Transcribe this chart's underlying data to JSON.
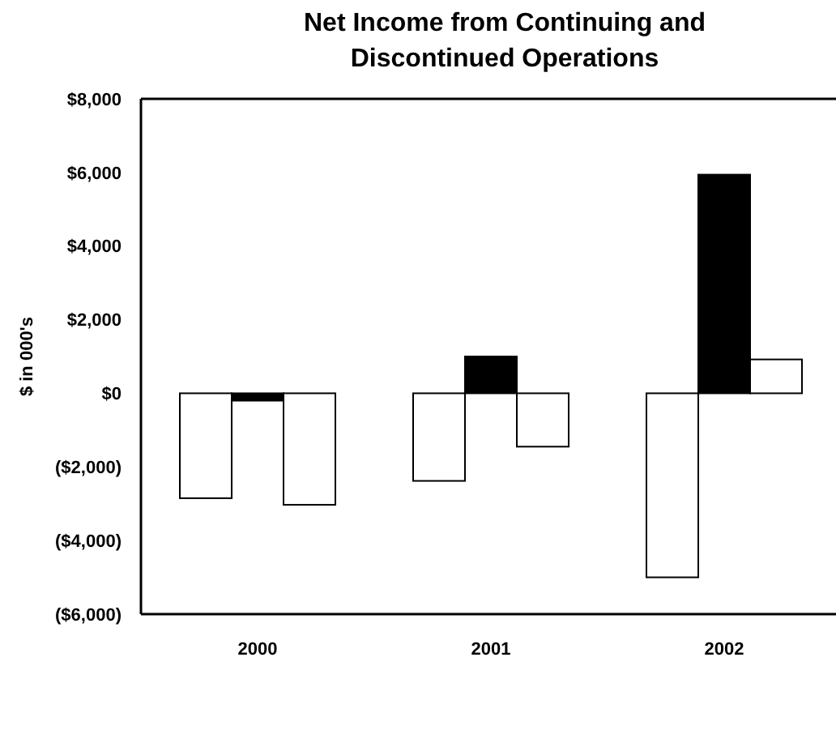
{
  "chart_data": {
    "type": "bar",
    "title": "Net Income from Continuing and Discontinued Operations",
    "ylabel": "$ in 000's",
    "categories": [
      "2000",
      "2001",
      "2002"
    ],
    "series": [
      {
        "color": "#ffffff",
        "values": [
          -2850,
          -2380,
          -5000
        ]
      },
      {
        "color": "#000000",
        "values": [
          -200,
          1000,
          5940
        ]
      },
      {
        "color": "#ffffff",
        "values": [
          -3030,
          -1450,
          920
        ]
      }
    ],
    "ylim": [
      -6000,
      8000
    ],
    "yticks": [
      {
        "value": -6000,
        "label": "($6,000)"
      },
      {
        "value": -4000,
        "label": "($4,000)"
      },
      {
        "value": -2000,
        "label": "($2,000)"
      },
      {
        "value": 0,
        "label": "$0"
      },
      {
        "value": 2000,
        "label": "$2,000"
      },
      {
        "value": 4000,
        "label": "$4,000"
      },
      {
        "value": 6000,
        "label": "$6,000"
      },
      {
        "value": 8000,
        "label": "$8,000"
      }
    ],
    "grid": false
  }
}
